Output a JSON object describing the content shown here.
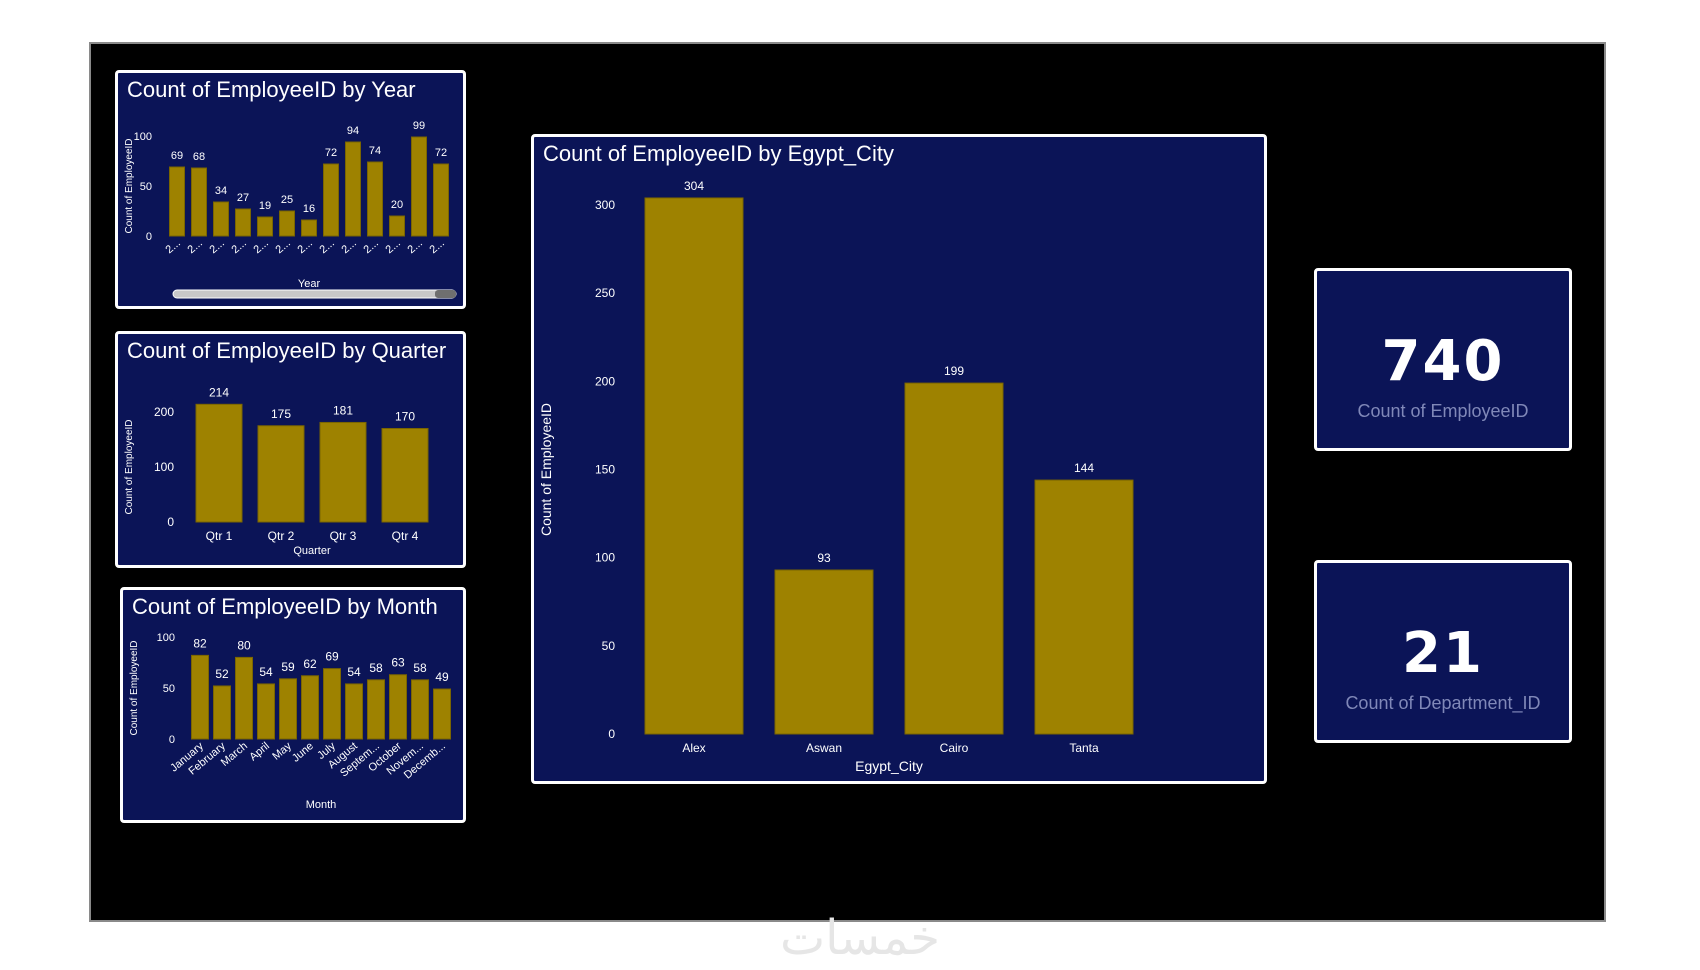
{
  "colors": {
    "bar": "#9e8200",
    "panel": "#0b1457",
    "background": "#000000",
    "text": "#ffffff",
    "muted": "#8088b8"
  },
  "watermark": "خمسات",
  "cards": {
    "employees": {
      "value": "740",
      "label": "Count of EmployeeID"
    },
    "departments": {
      "value": "21",
      "label": "Count of Department_ID"
    }
  },
  "chart_data": [
    {
      "id": "year",
      "type": "bar",
      "title": "Count of EmployeeID by Year",
      "xlabel": "Year",
      "ylabel": "Count of EmployeeID",
      "ylim": [
        0,
        100
      ],
      "yticks": [
        0,
        50,
        100
      ],
      "categories": [
        "2...",
        "2...",
        "2...",
        "2...",
        "2...",
        "2...",
        "2...",
        "2...",
        "2...",
        "2...",
        "2...",
        "2...",
        "2..."
      ],
      "values": [
        69,
        68,
        34,
        27,
        19,
        25,
        16,
        72,
        94,
        74,
        20,
        99,
        72
      ],
      "grid": false,
      "has_scrollbar": true
    },
    {
      "id": "quarter",
      "type": "bar",
      "title": "Count of EmployeeID by Quarter",
      "xlabel": "Quarter",
      "ylabel": "Count of EmployeeID",
      "ylim": [
        0,
        200
      ],
      "yticks": [
        0,
        100,
        200
      ],
      "categories": [
        "Qtr 1",
        "Qtr 2",
        "Qtr 3",
        "Qtr 4"
      ],
      "values": [
        214,
        175,
        181,
        170
      ],
      "grid": false
    },
    {
      "id": "month",
      "type": "bar",
      "title": "Count of EmployeeID by Month",
      "xlabel": "Month",
      "ylabel": "Count of EmployeeID",
      "ylim": [
        0,
        100
      ],
      "yticks": [
        0,
        50,
        100
      ],
      "categories": [
        "January",
        "February",
        "March",
        "April",
        "May",
        "June",
        "July",
        "August",
        "Septem...",
        "October",
        "Novem...",
        "Decemb..."
      ],
      "values": [
        82,
        52,
        80,
        54,
        59,
        62,
        69,
        54,
        58,
        63,
        58,
        49
      ],
      "grid": false
    },
    {
      "id": "city",
      "type": "bar",
      "title": "Count of EmployeeID by Egypt_City",
      "xlabel": "Egypt_City",
      "ylabel": "Count of EmployeeID",
      "ylim": [
        0,
        300
      ],
      "yticks": [
        0,
        50,
        100,
        150,
        200,
        250,
        300
      ],
      "categories": [
        "Alex",
        "Aswan",
        "Cairo",
        "Tanta"
      ],
      "values": [
        304,
        93,
        199,
        144
      ],
      "grid": false
    }
  ]
}
